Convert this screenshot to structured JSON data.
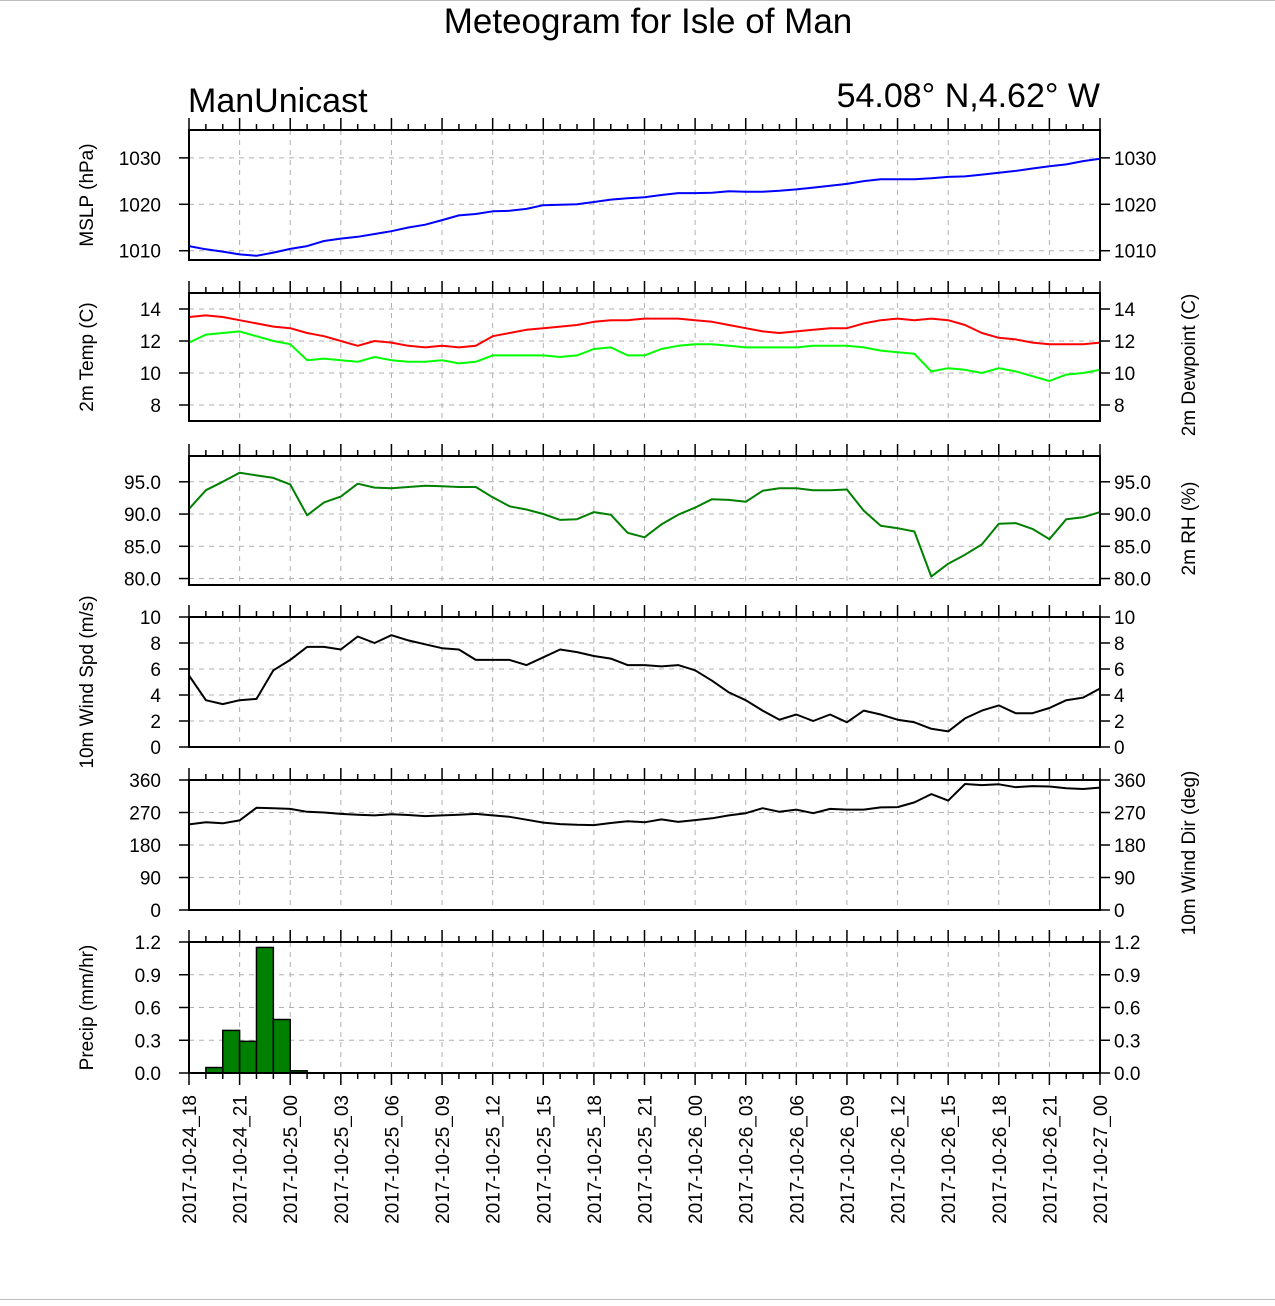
{
  "title": "Meteogram for Isle of Man",
  "station": "ManUnicast",
  "location": "54.08° N,4.62° W",
  "time_labels": [
    "2017-10-24_18",
    "2017-10-24_21",
    "2017-10-25_00",
    "2017-10-25_03",
    "2017-10-25_06",
    "2017-10-25_09",
    "2017-10-25_12",
    "2017-10-25_15",
    "2017-10-25_18",
    "2017-10-25_21",
    "2017-10-26_00",
    "2017-10-26_03",
    "2017-10-26_06",
    "2017-10-26_09",
    "2017-10-26_12",
    "2017-10-26_15",
    "2017-10-26_18",
    "2017-10-26_21",
    "2017-10-27_00"
  ],
  "chart_data": [
    {
      "type": "line",
      "id": "mslp",
      "ylabel": "MSLP (hPa)",
      "ylabel_right": "",
      "ylim": [
        1008,
        1036
      ],
      "yticks": [
        1010,
        1020,
        1030
      ],
      "ytick_labels": [
        "1010",
        "1020",
        "1030"
      ],
      "grid": true,
      "x_hours": [
        0,
        1,
        2,
        3,
        4,
        5,
        6,
        7,
        8,
        9,
        10,
        11,
        12,
        13,
        14,
        15,
        16,
        17,
        18,
        19,
        20,
        21,
        22,
        23,
        24,
        25,
        26,
        27,
        28,
        29,
        30,
        31,
        32,
        33,
        34,
        35,
        36,
        37,
        38,
        39,
        40,
        41,
        42,
        43,
        44,
        45,
        46,
        47,
        48,
        49,
        50,
        51,
        52,
        53,
        54
      ],
      "series": [
        {
          "name": "",
          "color": "#0000ff",
          "values": [
            1011.0,
            1010.3,
            1009.8,
            1009.2,
            1008.9,
            1009.6,
            1010.4,
            1011.0,
            1012.1,
            1012.6,
            1013.0,
            1013.6,
            1014.2,
            1015.0,
            1015.6,
            1016.6,
            1017.6,
            1017.9,
            1018.5,
            1018.6,
            1019.0,
            1019.8,
            1019.9,
            1020.0,
            1020.5,
            1021.0,
            1021.3,
            1021.5,
            1022.0,
            1022.4,
            1022.4,
            1022.5,
            1022.8,
            1022.7,
            1022.7,
            1022.9,
            1023.2,
            1023.6,
            1024.0,
            1024.4,
            1025.0,
            1025.4,
            1025.4,
            1025.4,
            1025.6,
            1025.9,
            1026.0,
            1026.4,
            1026.8,
            1027.2,
            1027.7,
            1028.2,
            1028.6,
            1029.3,
            1029.8
          ]
        }
      ]
    },
    {
      "type": "line",
      "id": "temp-dewpoint",
      "ylabel": "2m Temp (C)",
      "ylabel_right": "2m Dewpoint (C)",
      "ylim": [
        7,
        15
      ],
      "yticks": [
        8,
        10,
        12,
        14
      ],
      "ytick_labels": [
        "8",
        "10",
        "12",
        "14"
      ],
      "grid": true,
      "x_hours": [
        0,
        1,
        2,
        3,
        4,
        5,
        6,
        7,
        8,
        9,
        10,
        11,
        12,
        13,
        14,
        15,
        16,
        17,
        18,
        19,
        20,
        21,
        22,
        23,
        24,
        25,
        26,
        27,
        28,
        29,
        30,
        31,
        32,
        33,
        34,
        35,
        36,
        37,
        38,
        39,
        40,
        41,
        42,
        43,
        44,
        45,
        46,
        47,
        48,
        49,
        50,
        51,
        52,
        53,
        54
      ],
      "series": [
        {
          "name": "2m Temp",
          "color": "#ff0000",
          "values": [
            13.5,
            13.6,
            13.5,
            13.3,
            13.1,
            12.9,
            12.8,
            12.5,
            12.3,
            12.0,
            11.7,
            12.0,
            11.9,
            11.7,
            11.6,
            11.7,
            11.6,
            11.7,
            12.3,
            12.5,
            12.7,
            12.8,
            12.9,
            13.0,
            13.2,
            13.3,
            13.3,
            13.4,
            13.4,
            13.4,
            13.3,
            13.2,
            13.0,
            12.8,
            12.6,
            12.5,
            12.6,
            12.7,
            12.8,
            12.8,
            13.1,
            13.3,
            13.4,
            13.3,
            13.4,
            13.3,
            13.0,
            12.5,
            12.2,
            12.1,
            11.9,
            11.8,
            11.8,
            11.8,
            11.9
          ]
        },
        {
          "name": "2m Dewpoint",
          "color": "#00ff00",
          "values": [
            11.9,
            12.4,
            12.5,
            12.6,
            12.3,
            12.0,
            11.8,
            10.8,
            10.9,
            10.8,
            10.7,
            11.0,
            10.8,
            10.7,
            10.7,
            10.8,
            10.6,
            10.7,
            11.1,
            11.1,
            11.1,
            11.1,
            11.0,
            11.1,
            11.5,
            11.6,
            11.1,
            11.1,
            11.5,
            11.7,
            11.8,
            11.8,
            11.7,
            11.6,
            11.6,
            11.6,
            11.6,
            11.7,
            11.7,
            11.7,
            11.6,
            11.4,
            11.3,
            11.2,
            10.1,
            10.3,
            10.2,
            10.0,
            10.3,
            10.1,
            9.8,
            9.5,
            9.9,
            10.0,
            10.2
          ]
        }
      ]
    },
    {
      "type": "line",
      "id": "rh",
      "ylabel": "",
      "ylabel_right": "2m RH (%)",
      "ylim": [
        79,
        99
      ],
      "yticks": [
        80,
        85,
        90,
        95
      ],
      "ytick_labels": [
        "80.0",
        "85.0",
        "90.0",
        "95.0"
      ],
      "grid": true,
      "x_hours": [
        0,
        1,
        2,
        3,
        4,
        5,
        6,
        7,
        8,
        9,
        10,
        11,
        12,
        13,
        14,
        15,
        16,
        17,
        18,
        19,
        20,
        21,
        22,
        23,
        24,
        25,
        26,
        27,
        28,
        29,
        30,
        31,
        32,
        33,
        34,
        35,
        36,
        37,
        38,
        39,
        40,
        41,
        42,
        43,
        44,
        45,
        46,
        47,
        48,
        49,
        50,
        51,
        52,
        53,
        54
      ],
      "series": [
        {
          "name": "",
          "color": "#008000",
          "values": [
            90.8,
            93.7,
            95.0,
            96.4,
            96.0,
            95.6,
            94.6,
            89.8,
            91.8,
            92.7,
            94.7,
            94.1,
            94.0,
            94.2,
            94.4,
            94.3,
            94.2,
            94.2,
            92.6,
            91.2,
            90.7,
            90.0,
            89.1,
            89.2,
            90.3,
            89.9,
            87.1,
            86.4,
            88.4,
            89.9,
            91.0,
            92.3,
            92.2,
            91.9,
            93.6,
            94.0,
            94.0,
            93.7,
            93.7,
            93.8,
            90.5,
            88.2,
            87.8,
            87.3,
            80.3,
            82.3,
            83.7,
            85.3,
            88.5,
            88.6,
            87.7,
            86.1,
            89.2,
            89.5,
            90.3
          ]
        }
      ]
    },
    {
      "type": "line",
      "id": "wind-speed",
      "ylabel": "10m Wind Spd (m/s)",
      "ylabel_right": "",
      "ylim": [
        0,
        10
      ],
      "yticks": [
        0,
        2,
        4,
        6,
        8,
        10
      ],
      "ytick_labels": [
        "0",
        "2",
        "4",
        "6",
        "8",
        "10"
      ],
      "grid": true,
      "x_hours": [
        0,
        1,
        2,
        3,
        4,
        5,
        6,
        7,
        8,
        9,
        10,
        11,
        12,
        13,
        14,
        15,
        16,
        17,
        18,
        19,
        20,
        21,
        22,
        23,
        24,
        25,
        26,
        27,
        28,
        29,
        30,
        31,
        32,
        33,
        34,
        35,
        36,
        37,
        38,
        39,
        40,
        41,
        42,
        43,
        44,
        45,
        46,
        47,
        48,
        49,
        50,
        51,
        52,
        53,
        54
      ],
      "series": [
        {
          "name": "",
          "color": "#000000",
          "values": [
            5.5,
            3.6,
            3.3,
            3.6,
            3.7,
            5.9,
            6.7,
            7.7,
            7.7,
            7.5,
            8.5,
            8.0,
            8.6,
            8.2,
            7.9,
            7.6,
            7.5,
            6.7,
            6.7,
            6.7,
            6.3,
            6.9,
            7.5,
            7.3,
            7.0,
            6.8,
            6.3,
            6.3,
            6.2,
            6.3,
            5.9,
            5.1,
            4.2,
            3.6,
            2.8,
            2.1,
            2.5,
            2.0,
            2.5,
            1.9,
            2.8,
            2.5,
            2.1,
            1.9,
            1.4,
            1.2,
            2.2,
            2.8,
            3.2,
            2.6,
            2.6,
            3.0,
            3.6,
            3.8,
            4.5
          ]
        }
      ]
    },
    {
      "type": "line",
      "id": "wind-dir",
      "ylabel": "",
      "ylabel_right": "10m Wind Dir (deg)",
      "ylim": [
        0,
        360
      ],
      "yticks": [
        0,
        90,
        180,
        270,
        360
      ],
      "ytick_labels": [
        "0",
        "90",
        "180",
        "270",
        "360"
      ],
      "grid": true,
      "x_hours": [
        0,
        1,
        2,
        3,
        4,
        5,
        6,
        7,
        8,
        9,
        10,
        11,
        12,
        13,
        14,
        15,
        16,
        17,
        18,
        19,
        20,
        21,
        22,
        23,
        24,
        25,
        26,
        27,
        28,
        29,
        30,
        31,
        32,
        33,
        34,
        35,
        36,
        37,
        38,
        39,
        40,
        41,
        42,
        43,
        44,
        45,
        46,
        47,
        48,
        49,
        50,
        51,
        52,
        53,
        54
      ],
      "series": [
        {
          "name": "",
          "color": "#000000",
          "values": [
            237,
            243,
            240,
            248,
            283,
            282,
            280,
            272,
            270,
            266,
            264,
            262,
            265,
            263,
            260,
            262,
            264,
            266,
            262,
            258,
            250,
            242,
            238,
            236,
            235,
            241,
            246,
            243,
            251,
            244,
            249,
            254,
            262,
            268,
            282,
            272,
            278,
            268,
            280,
            278,
            278,
            284,
            285,
            298,
            321,
            303,
            349,
            346,
            348,
            340,
            343,
            342,
            337,
            335,
            339
          ]
        }
      ]
    },
    {
      "type": "bar",
      "id": "precip",
      "ylabel": "Precip (mm/hr)",
      "ylabel_right": "",
      "ylim": [
        0,
        1.2
      ],
      "yticks": [
        0,
        0.3,
        0.6,
        0.9,
        1.2
      ],
      "ytick_labels": [
        "0.0",
        "0.3",
        "0.6",
        "0.9",
        "1.2"
      ],
      "grid": true,
      "color": "#008000",
      "x_hours": [
        1,
        2,
        3,
        4,
        5,
        6
      ],
      "values": [
        0.05,
        0.39,
        0.29,
        1.15,
        0.49,
        0.02
      ]
    }
  ]
}
